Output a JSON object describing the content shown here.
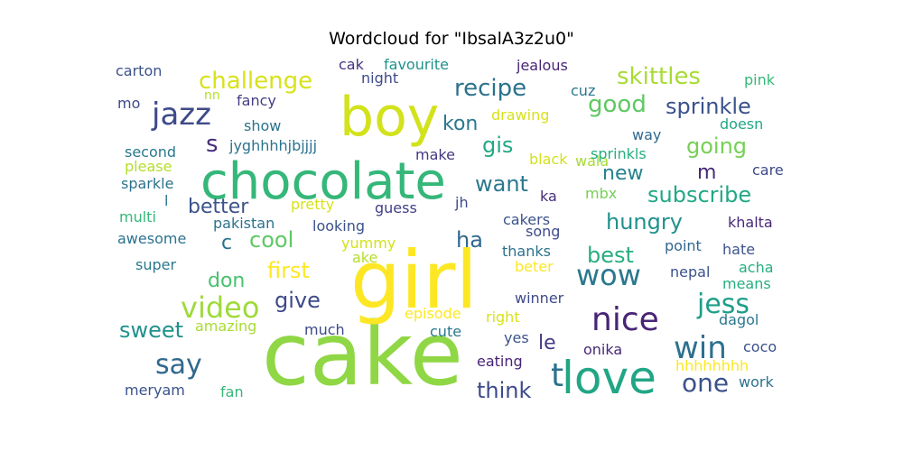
{
  "chart_data": {
    "type": "wordcloud",
    "title": "Wordcloud for \"IbsalA3z2u0\"",
    "words": [
      {
        "text": "cake",
        "color": "#8fd744"
      },
      {
        "text": "girl",
        "color": "#fde725"
      },
      {
        "text": "chocolate",
        "color": "#35b779"
      },
      {
        "text": "boy",
        "color": "#d2e21b"
      },
      {
        "text": "love",
        "color": "#21a685"
      },
      {
        "text": "nice",
        "color": "#482475"
      },
      {
        "text": "wow",
        "color": "#2a788e"
      },
      {
        "text": "jazz",
        "color": "#3e4a89"
      },
      {
        "text": "win",
        "color": "#2d708e"
      },
      {
        "text": "video",
        "color": "#9fda3a"
      },
      {
        "text": "jess",
        "color": "#1f9e89"
      },
      {
        "text": "say",
        "color": "#31688e"
      },
      {
        "text": "t",
        "color": "#2c728e"
      },
      {
        "text": "one",
        "color": "#3b528b"
      },
      {
        "text": "challenge",
        "color": "#d8e219"
      },
      {
        "text": "recipe",
        "color": "#2c728e"
      },
      {
        "text": "skittles",
        "color": "#a8db34"
      },
      {
        "text": "good",
        "color": "#5ec962"
      },
      {
        "text": "sprinkle",
        "color": "#3b528b"
      },
      {
        "text": "going",
        "color": "#75d054"
      },
      {
        "text": "subscribe",
        "color": "#22a884"
      },
      {
        "text": "hungry",
        "color": "#21918c"
      },
      {
        "text": "best",
        "color": "#27ad81"
      },
      {
        "text": "first",
        "color": "#fde725"
      },
      {
        "text": "give",
        "color": "#3e4a89"
      },
      {
        "text": "cool",
        "color": "#5ec962"
      },
      {
        "text": "better",
        "color": "#3b528b"
      },
      {
        "text": "want",
        "color": "#2a788e"
      },
      {
        "text": "gis",
        "color": "#22a884"
      },
      {
        "text": "kon",
        "color": "#2a788e"
      },
      {
        "text": "new",
        "color": "#26828e"
      },
      {
        "text": "sweet",
        "color": "#21918c"
      },
      {
        "text": "think",
        "color": "#3e4a89"
      },
      {
        "text": "don",
        "color": "#48c16e"
      },
      {
        "text": "ha",
        "color": "#31688e"
      },
      {
        "text": "s",
        "color": "#472c7a"
      },
      {
        "text": "m",
        "color": "#482878"
      },
      {
        "text": "c",
        "color": "#2c728e"
      },
      {
        "text": "le",
        "color": "#443983"
      },
      {
        "text": "carton",
        "color": "#3b528b"
      },
      {
        "text": "cak",
        "color": "#46337f"
      },
      {
        "text": "favourite",
        "color": "#21918c"
      },
      {
        "text": "jealous",
        "color": "#482475"
      },
      {
        "text": "pink",
        "color": "#35b779"
      },
      {
        "text": "night",
        "color": "#3e4a89"
      },
      {
        "text": "cuz",
        "color": "#2a788e"
      },
      {
        "text": "nn",
        "color": "#b5de2b"
      },
      {
        "text": "mo",
        "color": "#3e4a89"
      },
      {
        "text": "fancy",
        "color": "#433e85"
      },
      {
        "text": "drawing",
        "color": "#d8e219"
      },
      {
        "text": "show",
        "color": "#2c728e"
      },
      {
        "text": "doesn",
        "color": "#22a884"
      },
      {
        "text": "way",
        "color": "#31688e"
      },
      {
        "text": "jyghhhhjbjjjj",
        "color": "#2c728e"
      },
      {
        "text": "wala",
        "color": "#a8db34"
      },
      {
        "text": "second",
        "color": "#2a788e"
      },
      {
        "text": "make",
        "color": "#453781"
      },
      {
        "text": "sprinkls",
        "color": "#27ad81"
      },
      {
        "text": "black",
        "color": "#d2e21b"
      },
      {
        "text": "please",
        "color": "#b5de2b"
      },
      {
        "text": "care",
        "color": "#3e4a89"
      },
      {
        "text": "sparkle",
        "color": "#2c728e"
      },
      {
        "text": "mbx",
        "color": "#75d054"
      },
      {
        "text": "l",
        "color": "#2a788e"
      },
      {
        "text": "pretty",
        "color": "#d8e219"
      },
      {
        "text": "guess",
        "color": "#433e85"
      },
      {
        "text": "jh",
        "color": "#3e4a89"
      },
      {
        "text": "ka",
        "color": "#472c7a"
      },
      {
        "text": "multi",
        "color": "#35b779"
      },
      {
        "text": "pakistan",
        "color": "#2c728e"
      },
      {
        "text": "looking",
        "color": "#3b528b"
      },
      {
        "text": "cakers",
        "color": "#3b528b"
      },
      {
        "text": "khalta",
        "color": "#482878"
      },
      {
        "text": "song",
        "color": "#3e4a89"
      },
      {
        "text": "awesome",
        "color": "#2c728e"
      },
      {
        "text": "yummy",
        "color": "#d2e21b"
      },
      {
        "text": "thanks",
        "color": "#2c728e"
      },
      {
        "text": "point",
        "color": "#31688e"
      },
      {
        "text": "hate",
        "color": "#3b528b"
      },
      {
        "text": "ake",
        "color": "#b5de2b"
      },
      {
        "text": "super",
        "color": "#2a788e"
      },
      {
        "text": "beter",
        "color": "#fde725"
      },
      {
        "text": "nepal",
        "color": "#3b528b"
      },
      {
        "text": "acha",
        "color": "#27ad81"
      },
      {
        "text": "means",
        "color": "#27ad81"
      },
      {
        "text": "winner",
        "color": "#3e4a89"
      },
      {
        "text": "episode",
        "color": "#fde725"
      },
      {
        "text": "right",
        "color": "#d8e219"
      },
      {
        "text": "dagol",
        "color": "#2a788e"
      },
      {
        "text": "amazing",
        "color": "#a8db34"
      },
      {
        "text": "much",
        "color": "#3e4a89"
      },
      {
        "text": "cute",
        "color": "#2a788e"
      },
      {
        "text": "yes",
        "color": "#3b528b"
      },
      {
        "text": "onika",
        "color": "#482878"
      },
      {
        "text": "coco",
        "color": "#3b528b"
      },
      {
        "text": "eating",
        "color": "#482475"
      },
      {
        "text": "hhhhhhhh",
        "color": "#fde725"
      },
      {
        "text": "work",
        "color": "#2c728e"
      },
      {
        "text": "meryam",
        "color": "#3b528b"
      },
      {
        "text": "fan",
        "color": "#35b779"
      }
    ]
  }
}
